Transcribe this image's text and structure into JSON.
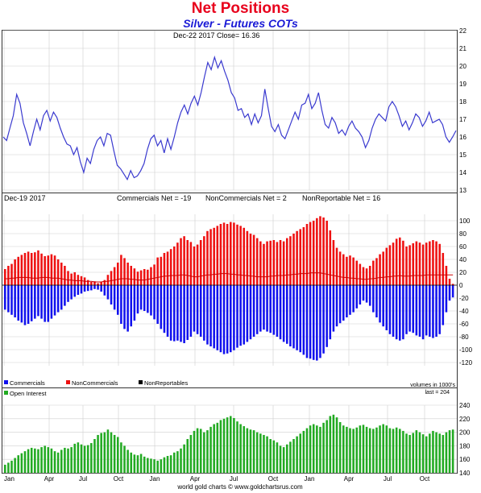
{
  "title": "Net Positions",
  "subtitle": "Silver - Futures COTs",
  "footer": "world gold charts © www.goldchartsrus.com",
  "colors": {
    "price": "#3a3acf",
    "commercials": "#1111ee",
    "noncommercials": "#ee1111",
    "nonreportables": "#cc0000",
    "open_interest": "#22aa22",
    "title": "#e8001c",
    "subtitle": "#1a1ad6"
  },
  "chart_data": [
    {
      "type": "line",
      "name": "price",
      "annotation": "Dec-22  2017    Close= 16.36",
      "ylim": [
        13,
        22
      ],
      "yticks": [
        13,
        14,
        15,
        16,
        17,
        18,
        19,
        20,
        21,
        22
      ],
      "x_tick_labels": [
        "Jan",
        "Apr",
        "Jul",
        "Oct",
        "Jan",
        "Apr",
        "Jul",
        "Oct",
        "Jan",
        "Apr",
        "Jul",
        "Oct"
      ],
      "values": [
        16.0,
        15.8,
        16.5,
        17.2,
        18.4,
        17.9,
        16.8,
        16.2,
        15.5,
        16.3,
        17.0,
        16.4,
        17.2,
        17.5,
        16.9,
        17.4,
        17.1,
        16.5,
        16.0,
        15.6,
        15.5,
        15.0,
        15.4,
        14.6,
        14.0,
        14.8,
        14.5,
        15.3,
        15.8,
        16.0,
        15.5,
        16.2,
        16.1,
        15.2,
        14.4,
        14.2,
        13.9,
        13.6,
        14.1,
        13.7,
        13.8,
        14.1,
        14.5,
        15.3,
        15.9,
        16.1,
        15.5,
        15.8,
        15.1,
        15.9,
        15.3,
        16.0,
        16.8,
        17.4,
        17.8,
        17.3,
        17.9,
        18.3,
        17.8,
        18.5,
        19.4,
        20.2,
        19.8,
        20.5,
        19.9,
        20.3,
        19.7,
        19.2,
        18.5,
        18.2,
        17.5,
        17.6,
        17.1,
        17.3,
        16.7,
        17.3,
        16.8,
        17.2,
        18.7,
        17.6,
        16.6,
        16.3,
        16.7,
        16.1,
        15.9,
        16.4,
        16.9,
        17.4,
        17.0,
        17.8,
        17.9,
        18.4,
        17.6,
        17.9,
        18.5,
        17.5,
        16.7,
        16.5,
        17.1,
        16.8,
        16.2,
        16.4,
        16.1,
        16.6,
        16.9,
        16.5,
        16.3,
        16.0,
        15.4,
        15.8,
        16.5,
        17.0,
        17.3,
        17.1,
        16.9,
        17.7,
        18.0,
        17.7,
        17.2,
        16.6,
        16.9,
        16.4,
        16.8,
        17.3,
        17.1,
        16.6,
        16.9,
        17.4,
        16.8,
        16.9,
        17.0,
        16.7,
        16.0,
        15.7,
        16.0,
        16.36
      ],
      "y_axis_side": "right"
    },
    {
      "type": "bar",
      "name": "net-positions",
      "annotation": "Dec-19  2017",
      "ylim": [
        -125,
        110
      ],
      "yticks": [
        -120,
        -100,
        -80,
        -60,
        -40,
        -20,
        0,
        20,
        40,
        60,
        80,
        100
      ],
      "header_labels": [
        "Commercials Net = -19",
        "NonCommercials Net = 2",
        "NonReportable Net = 16"
      ],
      "legend": [
        "Commercials",
        "NonCommercials",
        "NonReportables"
      ],
      "x_tick_labels": [
        "Jan",
        "Apr",
        "Jul",
        "Oct",
        "Jan",
        "Apr",
        "Jul",
        "Oct",
        "Jan",
        "Apr",
        "Jul",
        "Oct"
      ],
      "series": [
        {
          "name": "NonCommercials",
          "values": [
            25,
            30,
            33,
            40,
            44,
            47,
            50,
            52,
            50,
            51,
            54,
            49,
            45,
            46,
            48,
            46,
            40,
            35,
            30,
            22,
            18,
            20,
            16,
            14,
            12,
            8,
            5,
            6,
            3,
            5,
            8,
            16,
            22,
            28,
            35,
            47,
            42,
            35,
            30,
            26,
            21,
            23,
            25,
            24,
            28,
            32,
            43,
            44,
            50,
            52,
            56,
            60,
            66,
            73,
            76,
            70,
            67,
            60,
            63,
            70,
            76,
            84,
            87,
            89,
            92,
            95,
            97,
            95,
            98,
            97,
            94,
            92,
            89,
            84,
            80,
            78,
            73,
            68,
            64,
            68,
            69,
            70,
            67,
            70,
            68,
            73,
            76,
            80,
            84,
            87,
            90,
            95,
            98,
            100,
            104,
            107,
            105,
            100,
            85,
            70,
            58,
            52,
            48,
            44,
            46,
            43,
            38,
            33,
            28,
            26,
            30,
            38,
            42,
            48,
            52,
            58,
            62,
            66,
            72,
            74,
            69,
            60,
            62,
            65,
            68,
            66,
            63,
            66,
            68,
            70,
            68,
            64,
            50,
            30,
            10,
            2
          ]
        },
        {
          "name": "Commercials",
          "values": [
            -38,
            -42,
            -46,
            -50,
            -55,
            -58,
            -62,
            -60,
            -56,
            -52,
            -48,
            -52,
            -57,
            -57,
            -52,
            -47,
            -42,
            -38,
            -32,
            -26,
            -22,
            -18,
            -15,
            -13,
            -10,
            -9,
            -8,
            -6,
            -7,
            -10,
            -16,
            -22,
            -30,
            -38,
            -46,
            -60,
            -68,
            -72,
            -64,
            -55,
            -44,
            -38,
            -40,
            -43,
            -47,
            -53,
            -60,
            -68,
            -74,
            -80,
            -86,
            -87,
            -86,
            -88,
            -90,
            -85,
            -80,
            -72,
            -76,
            -80,
            -86,
            -92,
            -95,
            -98,
            -101,
            -104,
            -107,
            -106,
            -104,
            -101,
            -97,
            -94,
            -92,
            -88,
            -84,
            -80,
            -76,
            -72,
            -69,
            -72,
            -74,
            -77,
            -80,
            -84,
            -88,
            -91,
            -95,
            -98,
            -101,
            -104,
            -108,
            -113,
            -114,
            -116,
            -117,
            -113,
            -106,
            -96,
            -84,
            -72,
            -64,
            -59,
            -55,
            -50,
            -46,
            -42,
            -36,
            -30,
            -24,
            -27,
            -32,
            -42,
            -50,
            -58,
            -64,
            -70,
            -76,
            -80,
            -84,
            -86,
            -84,
            -76,
            -72,
            -74,
            -78,
            -80,
            -84,
            -78,
            -80,
            -82,
            -80,
            -76,
            -62,
            -42,
            -24,
            -19
          ]
        },
        {
          "name": "NonReportables",
          "values": [
            10,
            10,
            11,
            11,
            12,
            12,
            12,
            12,
            11,
            11,
            11,
            12,
            12,
            12,
            11,
            11,
            11,
            10,
            9,
            8,
            8,
            7,
            7,
            7,
            6,
            6,
            6,
            5,
            5,
            5,
            6,
            6,
            7,
            8,
            9,
            10,
            10,
            10,
            9,
            9,
            8,
            8,
            8,
            9,
            10,
            11,
            12,
            13,
            14,
            14,
            15,
            15,
            15,
            16,
            16,
            15,
            14,
            13,
            13,
            14,
            15,
            16,
            16,
            17,
            17,
            18,
            18,
            18,
            17,
            17,
            16,
            16,
            15,
            15,
            14,
            14,
            13,
            13,
            13,
            13,
            14,
            14,
            15,
            15,
            15,
            16,
            16,
            17,
            17,
            18,
            18,
            18,
            19,
            19,
            19,
            19,
            18,
            17,
            16,
            15,
            14,
            13,
            12,
            12,
            11,
            11,
            10,
            10,
            9,
            9,
            10,
            10,
            11,
            12,
            12,
            13,
            13,
            14,
            14,
            15,
            14,
            14,
            14,
            15,
            15,
            15,
            15,
            16,
            16,
            16,
            16,
            16,
            16,
            16,
            16,
            16
          ]
        }
      ],
      "y_axis_side": "right"
    },
    {
      "type": "bar",
      "name": "open-interest",
      "legend": [
        "Open Interest"
      ],
      "unit_label": "volumes in 1000's",
      "last_label": "last = 204",
      "ylim": [
        140,
        240
      ],
      "yticks": [
        140,
        160,
        180,
        200,
        220,
        240
      ],
      "x_tick_labels": [
        "Jan",
        "Apr",
        "Jul",
        "Oct",
        "Jan",
        "Apr",
        "Jul",
        "Oct",
        "Jan",
        "Apr",
        "Jul",
        "Oct"
      ],
      "values": [
        152,
        155,
        158,
        162,
        166,
        169,
        172,
        175,
        177,
        176,
        175,
        178,
        180,
        178,
        176,
        172,
        170,
        174,
        177,
        176,
        178,
        183,
        185,
        182,
        180,
        181,
        184,
        190,
        196,
        199,
        200,
        204,
        200,
        196,
        193,
        185,
        180,
        174,
        170,
        167,
        166,
        168,
        164,
        162,
        161,
        160,
        158,
        160,
        163,
        165,
        166,
        170,
        172,
        176,
        182,
        190,
        196,
        202,
        206,
        205,
        200,
        203,
        208,
        212,
        214,
        218,
        220,
        222,
        224,
        221,
        216,
        212,
        209,
        206,
        204,
        203,
        200,
        198,
        196,
        194,
        190,
        188,
        185,
        180,
        178,
        182,
        186,
        190,
        194,
        198,
        202,
        206,
        210,
        212,
        210,
        208,
        214,
        218,
        224,
        226,
        222,
        215,
        210,
        208,
        206,
        205,
        207,
        210,
        211,
        208,
        206,
        205,
        207,
        210,
        212,
        210,
        206,
        205,
        207,
        205,
        202,
        198,
        196,
        199,
        203,
        200,
        197,
        194,
        198,
        202,
        200,
        198,
        196,
        200,
        203,
        204
      ]
    }
  ]
}
